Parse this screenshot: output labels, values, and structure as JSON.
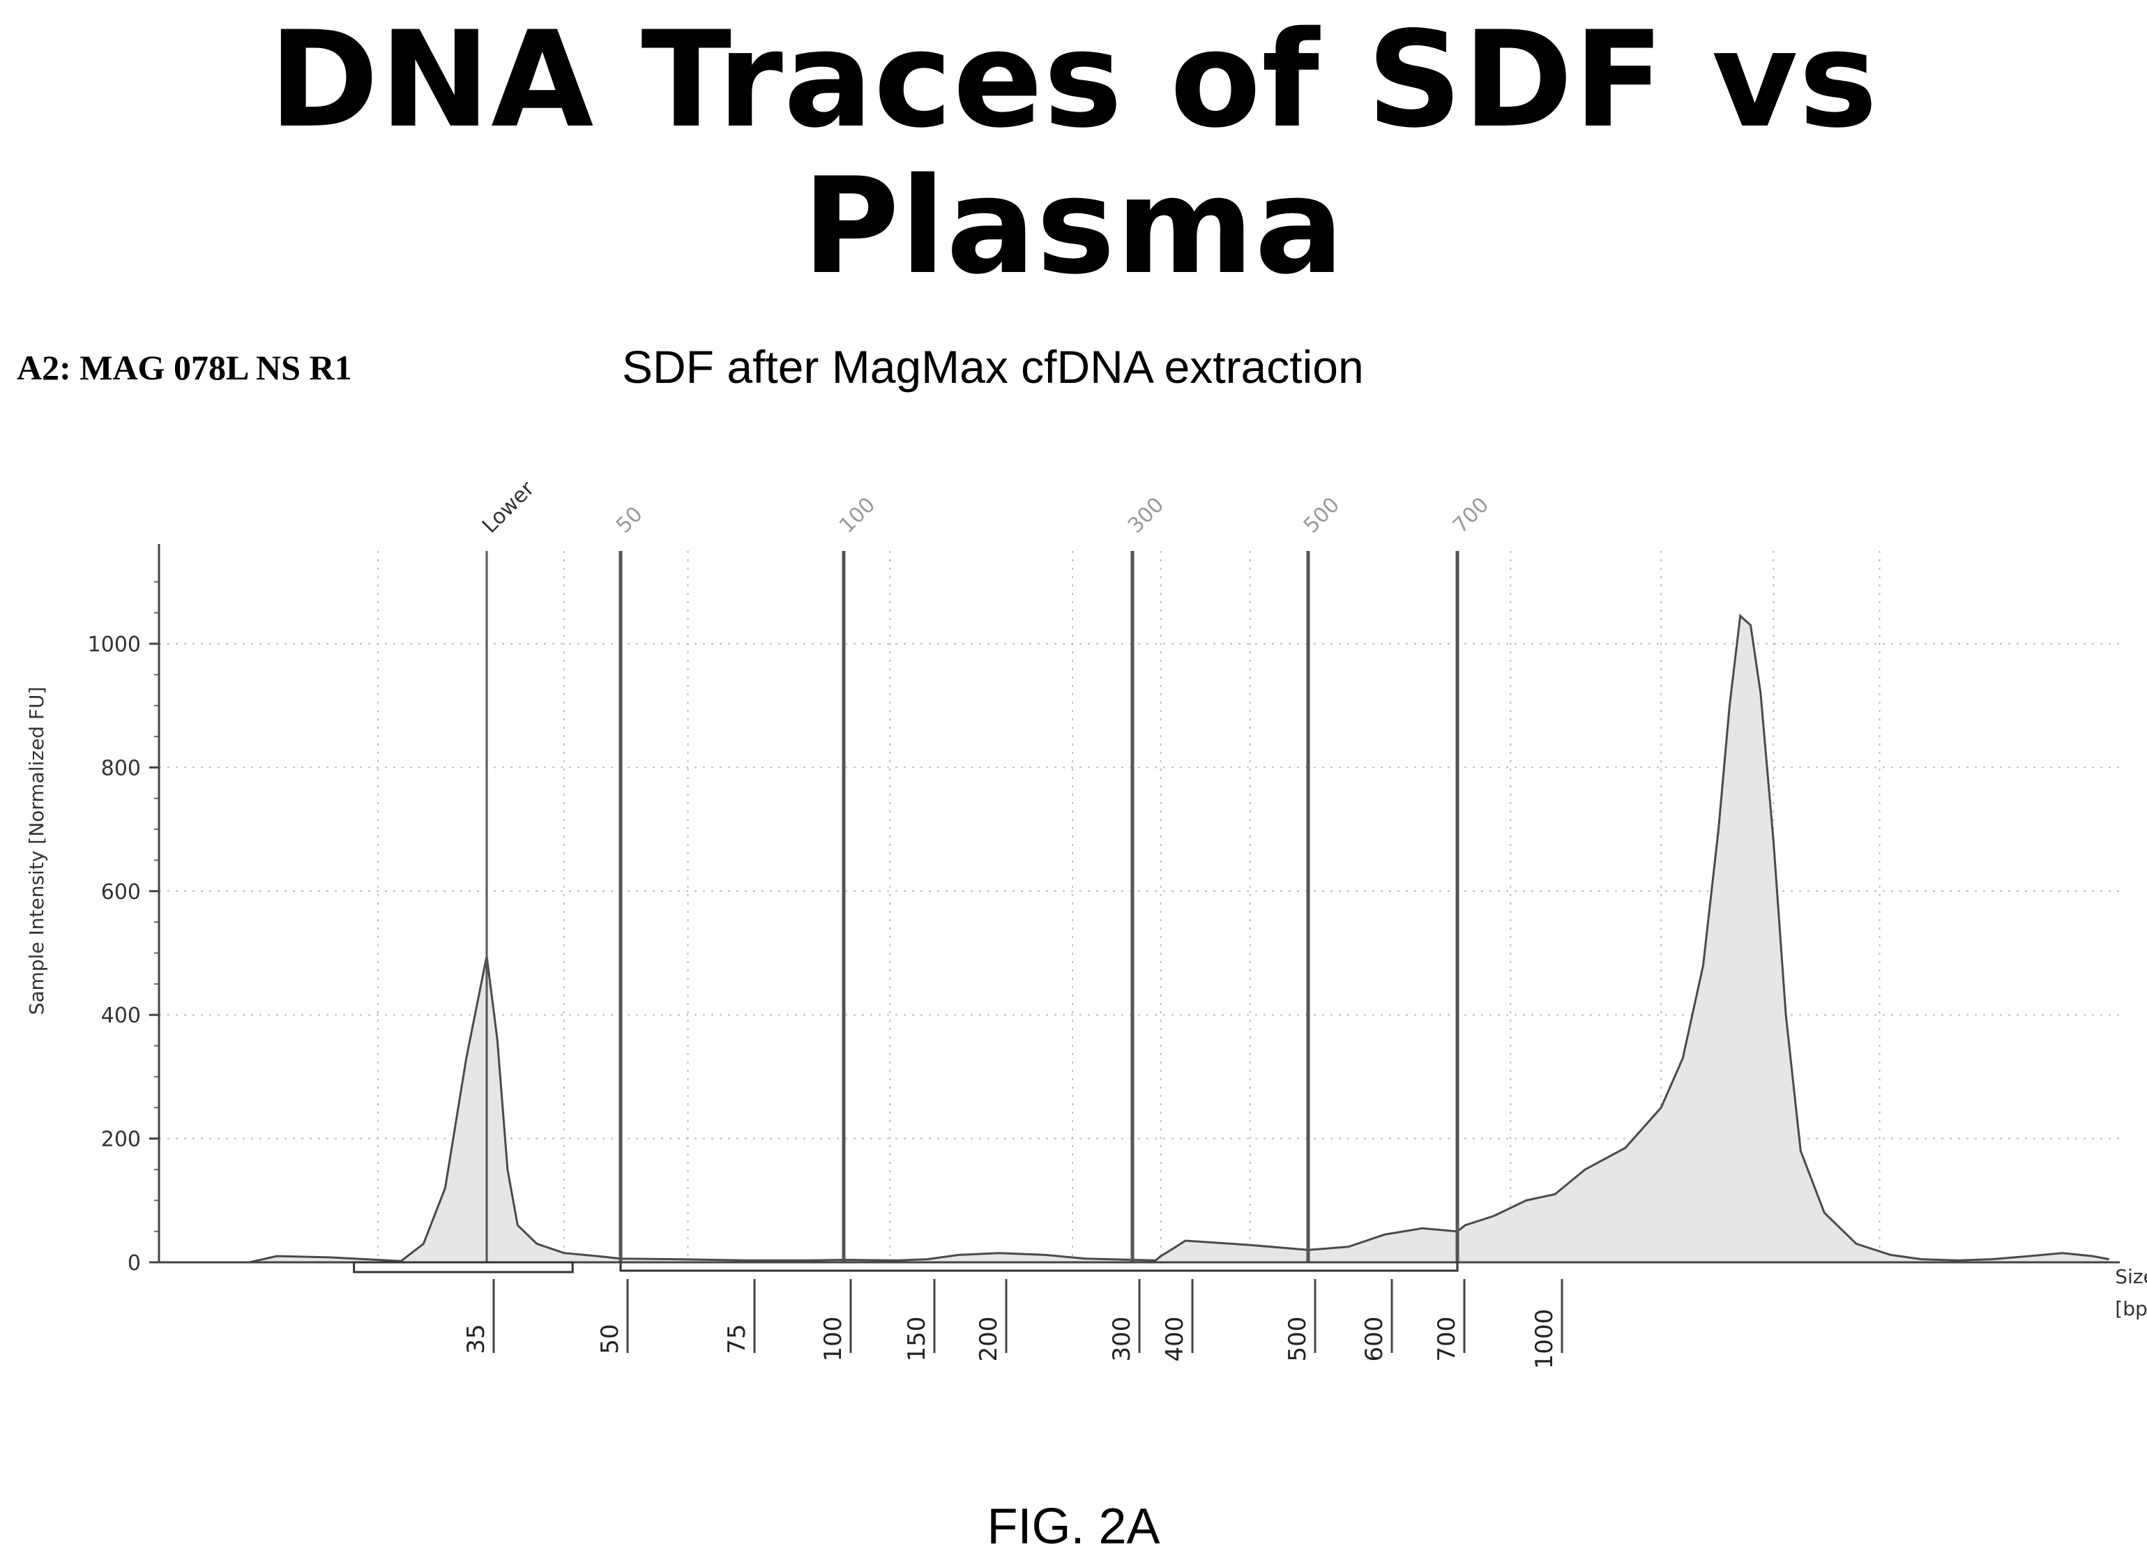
{
  "page": {
    "title": "DNA Traces of SDF vs Plasma",
    "sample_id": "A2: MAG 078L NS R1",
    "subtitle": "SDF after MagMax cfDNA extraction",
    "figure_label": "FIG. 2A"
  },
  "chart_data": {
    "type": "area",
    "title": "",
    "ylabel": "Sample Intensity [Normalized FU]",
    "xlabel_line1": "Size",
    "xlabel_line2": "[bp]",
    "ylim": [
      0,
      1150
    ],
    "y_ticks": [
      0,
      200,
      400,
      600,
      800,
      1000
    ],
    "x_scale": "log (bp)",
    "grid": true,
    "colors": {
      "fill": "#e6e6e6",
      "line": "#4a4a4a",
      "marker": "#555555",
      "grid": "#bdbdbd"
    },
    "marker_lines": [
      {
        "label": "Lower",
        "bp": 35
      },
      {
        "label": "50",
        "bp": 50
      },
      {
        "label": "100",
        "bp": 100
      },
      {
        "label": "300",
        "bp": 300
      },
      {
        "label": "500",
        "bp": 500
      },
      {
        "label": "700",
        "bp": 700
      }
    ],
    "x_ladder": [
      {
        "label": "35",
        "bp": 35
      },
      {
        "label": "50",
        "bp": 50
      },
      {
        "label": "75",
        "bp": 75
      },
      {
        "label": "100",
        "bp": 100
      },
      {
        "label": "150",
        "bp": 150
      },
      {
        "label": "200",
        "bp": 200
      },
      {
        "label": "300",
        "bp": 300
      },
      {
        "label": "400",
        "bp": 400
      },
      {
        "label": "500",
        "bp": 500
      },
      {
        "label": "600",
        "bp": 600
      },
      {
        "label": "700",
        "bp": 700
      },
      {
        "label": "1000",
        "bp": 1000
      }
    ],
    "trace": [
      [
        22,
        0
      ],
      [
        25,
        0
      ],
      [
        26,
        10
      ],
      [
        28,
        8
      ],
      [
        30,
        4
      ],
      [
        31,
        2
      ],
      [
        32,
        30
      ],
      [
        33,
        120
      ],
      [
        34,
        330
      ],
      [
        35,
        495
      ],
      [
        36,
        360
      ],
      [
        37,
        150
      ],
      [
        38,
        60
      ],
      [
        40,
        30
      ],
      [
        43,
        15
      ],
      [
        47,
        10
      ],
      [
        50,
        6
      ],
      [
        60,
        5
      ],
      [
        75,
        3
      ],
      [
        90,
        3
      ],
      [
        100,
        4
      ],
      [
        130,
        3
      ],
      [
        150,
        5
      ],
      [
        170,
        12
      ],
      [
        200,
        15
      ],
      [
        230,
        12
      ],
      [
        260,
        6
      ],
      [
        300,
        4
      ],
      [
        340,
        3
      ],
      [
        350,
        10
      ],
      [
        380,
        25
      ],
      [
        400,
        35
      ],
      [
        450,
        28
      ],
      [
        500,
        20
      ],
      [
        550,
        25
      ],
      [
        600,
        45
      ],
      [
        650,
        55
      ],
      [
        700,
        50
      ],
      [
        720,
        60
      ],
      [
        800,
        75
      ],
      [
        900,
        100
      ],
      [
        1000,
        110
      ],
      [
        1100,
        150
      ],
      [
        1250,
        185
      ],
      [
        1400,
        250
      ],
      [
        1500,
        330
      ],
      [
        1600,
        480
      ],
      [
        1680,
        700
      ],
      [
        1740,
        900
      ],
      [
        1800,
        1045
      ],
      [
        1860,
        1030
      ],
      [
        1920,
        920
      ],
      [
        2000,
        680
      ],
      [
        2080,
        400
      ],
      [
        2180,
        180
      ],
      [
        2350,
        80
      ],
      [
        2600,
        30
      ],
      [
        2900,
        12
      ],
      [
        3200,
        5
      ],
      [
        3600,
        3
      ],
      [
        4000,
        5
      ],
      [
        4500,
        10
      ],
      [
        5000,
        15
      ],
      [
        5500,
        10
      ],
      [
        5800,
        5
      ]
    ]
  }
}
